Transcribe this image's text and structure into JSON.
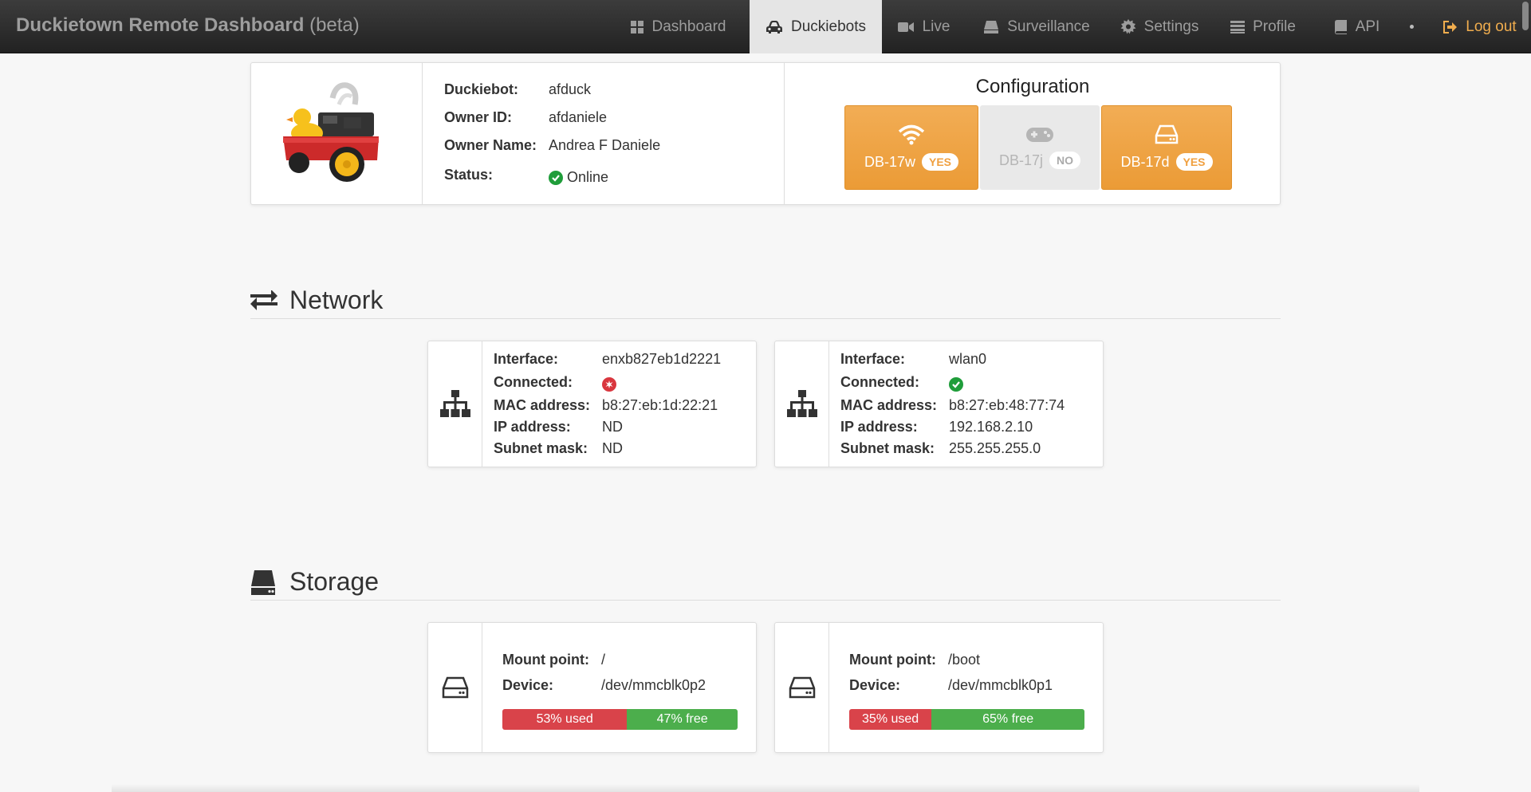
{
  "navbar": {
    "brand_bold": "Duckietown Remote Dashboard",
    "brand_suffix": "(beta)",
    "items": [
      {
        "label": "Dashboard",
        "icon": "grid-icon"
      },
      {
        "label": "Duckiebots",
        "icon": "car-icon",
        "active": true
      },
      {
        "label": "Live",
        "icon": "video-camera-icon"
      },
      {
        "label": "Surveillance",
        "icon": "eject-icon"
      },
      {
        "label": "Settings",
        "icon": "gear-icon"
      },
      {
        "label": "Profile",
        "icon": "list-icon"
      },
      {
        "label": "API",
        "icon": "book-icon"
      },
      {
        "label": "Log out",
        "icon": "sign-out-icon"
      }
    ]
  },
  "robot": {
    "fields": [
      {
        "label": "Duckiebot:",
        "value": "afduck"
      },
      {
        "label": "Owner ID:",
        "value": "afdaniele"
      },
      {
        "label": "Owner Name:",
        "value": "Andrea F Daniele"
      },
      {
        "label": "Status:",
        "value": "Online"
      }
    ]
  },
  "configuration": {
    "title": "Configuration",
    "items": [
      {
        "name": "DB-17w",
        "badge": "YES",
        "icon": "wifi-icon",
        "enabled": true
      },
      {
        "name": "DB-17j",
        "badge": "NO",
        "icon": "gamepad-icon",
        "enabled": false
      },
      {
        "name": "DB-17d",
        "badge": "YES",
        "icon": "hdd-icon",
        "enabled": true
      }
    ]
  },
  "network": {
    "title": "Network",
    "labels": {
      "interface": "Interface:",
      "connected": "Connected:",
      "mac": "MAC address:",
      "ip": "IP address:",
      "mask": "Subnet mask:"
    },
    "interfaces": [
      {
        "interface": "enxb827eb1d2221",
        "connected": false,
        "mac": "b8:27:eb:1d:22:21",
        "ip": "ND",
        "mask": "ND"
      },
      {
        "interface": "wlan0",
        "connected": true,
        "mac": "b8:27:eb:48:77:74",
        "ip": "192.168.2.10",
        "mask": "255.255.255.0"
      }
    ]
  },
  "storage": {
    "title": "Storage",
    "labels": {
      "mount": "Mount point:",
      "device": "Device:"
    },
    "disks": [
      {
        "mount": "/",
        "device": "/dev/mmcblk0p2",
        "used_label": "53% used",
        "free_label": "47% free",
        "used_fraction": 0.53
      },
      {
        "mount": "/boot",
        "device": "/dev/mmcblk0p1",
        "used_label": "35% used",
        "free_label": "65% free",
        "used_fraction": 0.35
      }
    ]
  },
  "colors": {
    "accent": "#f0ad4e",
    "danger": "#d9434a",
    "success": "#4cae4c"
  }
}
